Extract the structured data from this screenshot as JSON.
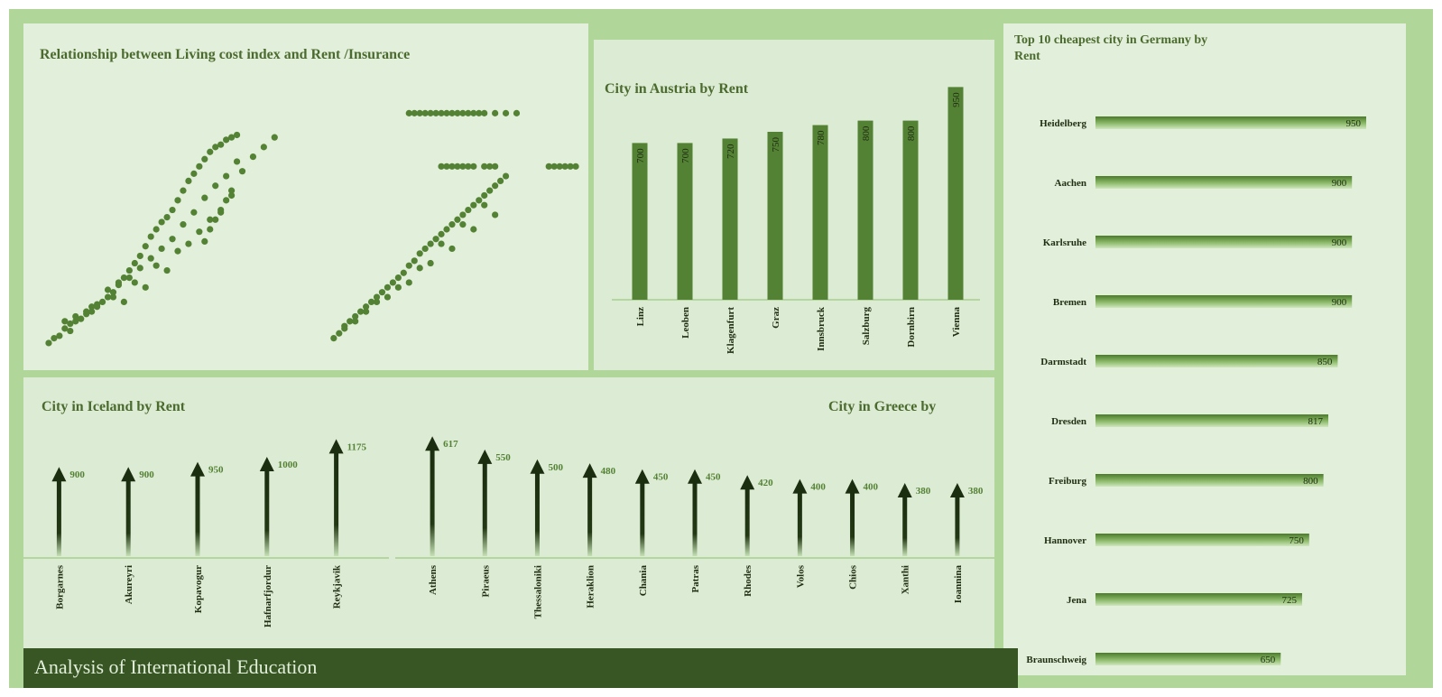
{
  "footer": {
    "title": "Analysis of International Education"
  },
  "colors": {
    "board": "#b0d69a",
    "panel_light": "#e2efda",
    "panel_mid": "#dcebd3",
    "bar": "#548235",
    "dark": "#375623",
    "title": "#4b6b2e"
  },
  "chart_data": [
    {
      "id": "scatter",
      "type": "scatter",
      "title": "Relationship between Living cost index and Rent /Insurance",
      "xlabel": "",
      "ylabel": "",
      "xlim": [
        0,
        100
      ],
      "ylim": [
        0,
        100
      ],
      "grid": false,
      "series": [
        {
          "x": [
            1,
            2,
            3,
            4,
            5,
            6,
            7,
            8,
            9,
            10,
            11,
            12,
            13,
            14,
            15,
            16,
            17,
            18,
            19,
            20,
            21,
            22,
            23,
            24,
            25,
            26,
            27,
            28,
            29,
            30,
            31,
            32,
            33,
            34,
            35,
            36,
            4,
            6,
            8,
            10,
            12,
            14,
            16,
            18,
            20,
            22,
            24,
            26,
            28,
            30,
            32,
            34,
            36,
            5,
            9,
            13,
            17,
            21,
            25,
            29,
            33,
            15,
            19,
            23,
            27,
            31,
            35,
            37,
            39,
            41,
            43
          ],
          "y": [
            3,
            5,
            6,
            9,
            11,
            12,
            13,
            15,
            16,
            18,
            20,
            22,
            24,
            27,
            30,
            33,
            36,
            39,
            43,
            47,
            50,
            53,
            55,
            58,
            62,
            66,
            70,
            73,
            76,
            79,
            82,
            84,
            85,
            87,
            88,
            89,
            12,
            14,
            16,
            19,
            25,
            28,
            30,
            34,
            38,
            42,
            46,
            52,
            57,
            63,
            68,
            72,
            78,
            8,
            18,
            22,
            28,
            35,
            41,
            49,
            57,
            20,
            26,
            33,
            44,
            54,
            64,
            74,
            80,
            84,
            88
          ]
        },
        {
          "x": [
            30,
            31,
            32,
            33,
            34,
            35
          ],
          "y": [
            45,
            50,
            54,
            58,
            62,
            66
          ]
        },
        {
          "x": [
            54,
            55,
            56,
            57,
            58,
            59,
            60,
            61,
            62,
            63,
            64,
            65,
            66,
            67,
            68,
            69,
            70,
            71,
            72,
            73,
            74,
            75,
            76,
            77,
            78,
            79,
            80,
            81,
            82,
            83,
            84,
            85,
            86,
            56,
            60,
            64,
            68,
            72,
            76,
            80,
            84,
            58,
            62,
            66,
            70,
            74,
            78,
            82
          ],
          "y": [
            5,
            7,
            9,
            12,
            14,
            16,
            18,
            20,
            22,
            24,
            26,
            28,
            30,
            32,
            35,
            37,
            40,
            42,
            44,
            46,
            48,
            50,
            52,
            54,
            56,
            58,
            60,
            62,
            64,
            66,
            68,
            70,
            72,
            10,
            16,
            22,
            28,
            36,
            42,
            50,
            56,
            12,
            20,
            26,
            34,
            44,
            52,
            60
          ]
        },
        {
          "x": [
            68,
            69,
            70,
            71,
            72,
            73,
            74,
            75,
            76,
            77,
            78,
            79,
            80,
            81,
            82,
            84,
            86,
            88,
            74,
            75,
            76,
            77,
            78,
            79,
            80,
            82,
            83,
            84,
            94,
            95,
            96,
            97,
            98,
            99
          ],
          "y": [
            98,
            98,
            98,
            98,
            98,
            98,
            98,
            98,
            98,
            98,
            98,
            98,
            98,
            98,
            98,
            98,
            98,
            98,
            76,
            76,
            76,
            76,
            76,
            76,
            76,
            76,
            76,
            76,
            76,
            76,
            76,
            76,
            76,
            76
          ]
        }
      ]
    },
    {
      "id": "austria",
      "type": "bar",
      "title": "City in Austria by Rent",
      "xlabel": "",
      "ylabel": "",
      "categories": [
        "Linz",
        "Leoben",
        "Klagenfurt",
        "Graz",
        "Innsbruck",
        "Salzburg",
        "Dornbirn",
        "Vienna"
      ],
      "values": [
        700,
        700,
        720,
        750,
        780,
        800,
        800,
        950
      ],
      "ylim": [
        0,
        1000
      ]
    },
    {
      "id": "iceland",
      "type": "bar",
      "title": "City in Iceland by Rent",
      "xlabel": "",
      "ylabel": "",
      "categories": [
        "Borgarnes",
        "Akureyri",
        "Kopavogur",
        "Hafnarfjordur",
        "Reykjavik"
      ],
      "values": [
        900,
        900,
        950,
        1000,
        1175
      ],
      "ylim": [
        0,
        1250
      ]
    },
    {
      "id": "greece",
      "type": "bar",
      "title": "City in Greece by",
      "xlabel": "",
      "ylabel": "",
      "categories": [
        "Athens",
        "Piraeus",
        "Thessaloniki",
        "Heraklion",
        "Chania",
        "Patras",
        "Rhodes",
        "Volos",
        "Chios",
        "Xanthi",
        "Ioannina"
      ],
      "values": [
        617,
        550,
        500,
        480,
        450,
        450,
        420,
        400,
        400,
        380,
        380
      ],
      "ylim": [
        0,
        650
      ]
    },
    {
      "id": "germany",
      "type": "bar",
      "orientation": "horizontal",
      "title": "Top 10 cheapest city in Germany by Rent",
      "xlabel": "",
      "ylabel": "",
      "categories": [
        "Heidelberg",
        "Aachen",
        "Karlsruhe",
        "Bremen",
        "Darmstadt",
        "Dresden",
        "Freiburg",
        "Hannover",
        "Jena",
        "Braunschweig"
      ],
      "values": [
        950,
        900,
        900,
        900,
        850,
        817,
        800,
        750,
        725,
        650
      ],
      "xlim": [
        0,
        950
      ]
    }
  ]
}
